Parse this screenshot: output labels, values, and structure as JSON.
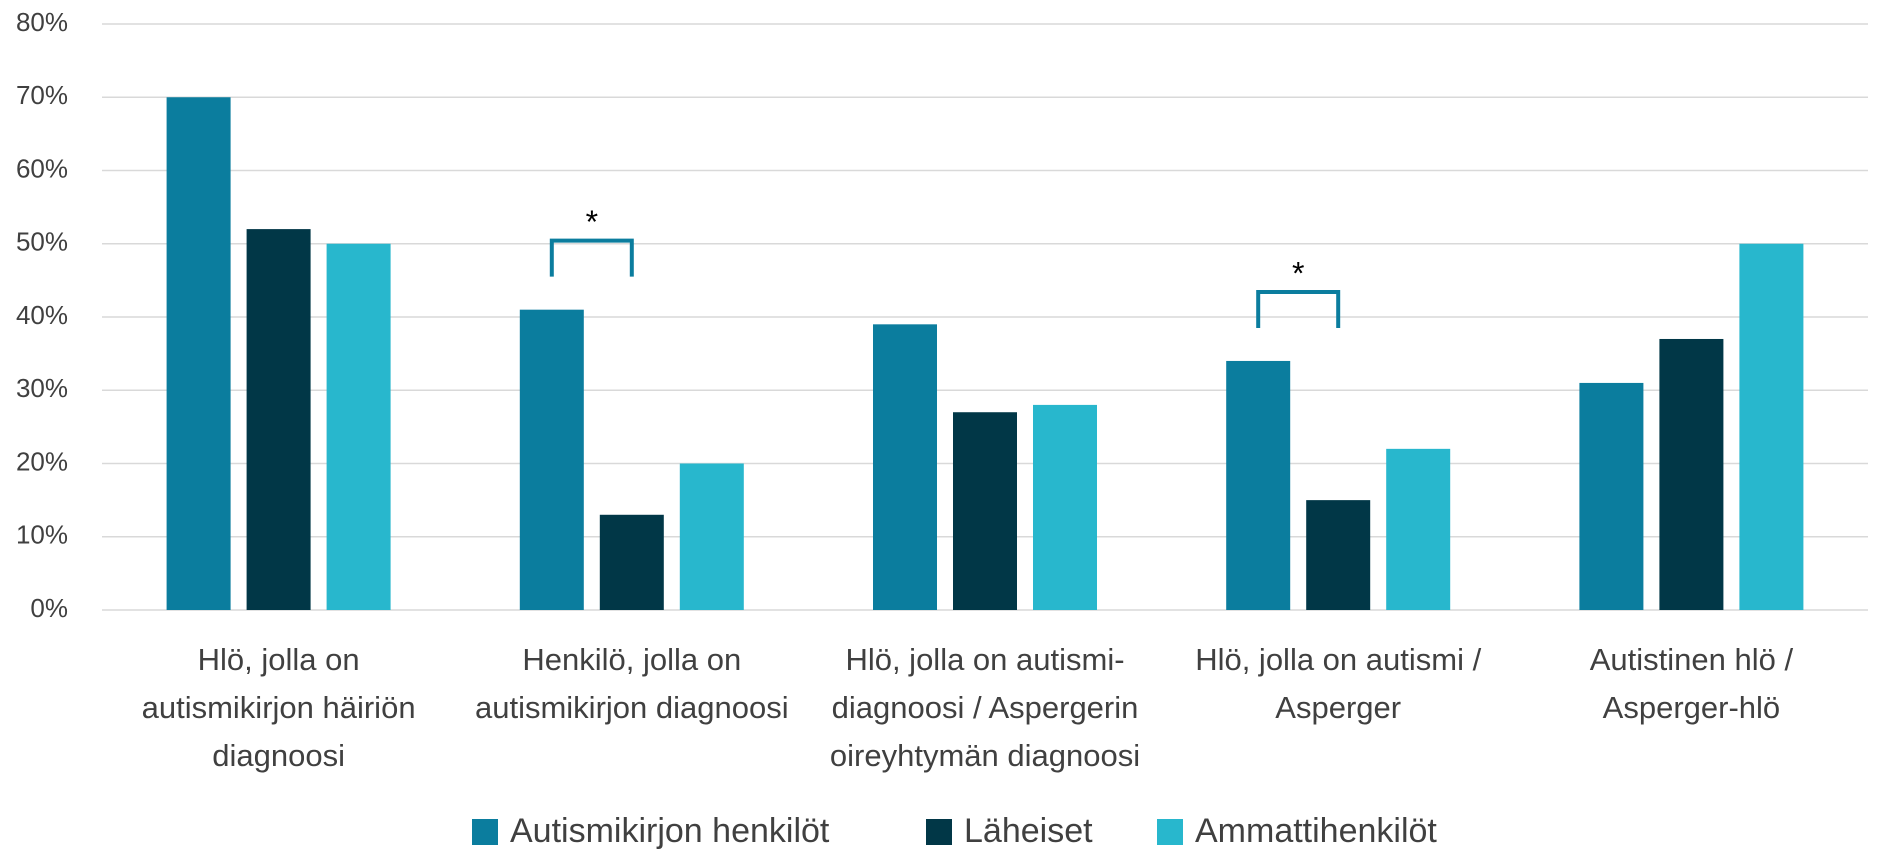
{
  "chart_data": {
    "type": "bar",
    "categories": [
      [
        "Hlö, jolla on",
        "autismikirjon häiriön",
        "diagnoosi"
      ],
      [
        "Henkilö, jolla on",
        "autismikirjon diagnoosi"
      ],
      [
        "Hlö, jolla on autismi-",
        "diagnoosi / Aspergerin",
        "oireyhtymän diagnoosi"
      ],
      [
        "Hlö, jolla on autismi /",
        "Asperger"
      ],
      [
        "Autistinen hlö /",
        "Asperger-hlö"
      ]
    ],
    "series": [
      {
        "name": "Autismikirjon henkilöt",
        "color": "#0b7d9e",
        "values": [
          70,
          41,
          39,
          34,
          31
        ]
      },
      {
        "name": "Läheiset",
        "color": "#013747",
        "values": [
          52,
          13,
          27,
          15,
          37
        ]
      },
      {
        "name": "Ammattihenkilöt",
        "color": "#28b7cd",
        "values": [
          50,
          20,
          28,
          22,
          50
        ]
      }
    ],
    "ylim": [
      0,
      80
    ],
    "yticks": [
      {
        "value": 0,
        "label": "0%"
      },
      {
        "value": 10,
        "label": "10%"
      },
      {
        "value": 20,
        "label": "20%"
      },
      {
        "value": 30,
        "label": "30%"
      },
      {
        "value": 40,
        "label": "40%"
      },
      {
        "value": 50,
        "label": "50%"
      },
      {
        "value": 60,
        "label": "60%"
      },
      {
        "value": 70,
        "label": "70%"
      },
      {
        "value": 80,
        "label": "80%"
      }
    ],
    "grid": true,
    "annotations": [
      "*",
      "*"
    ]
  }
}
